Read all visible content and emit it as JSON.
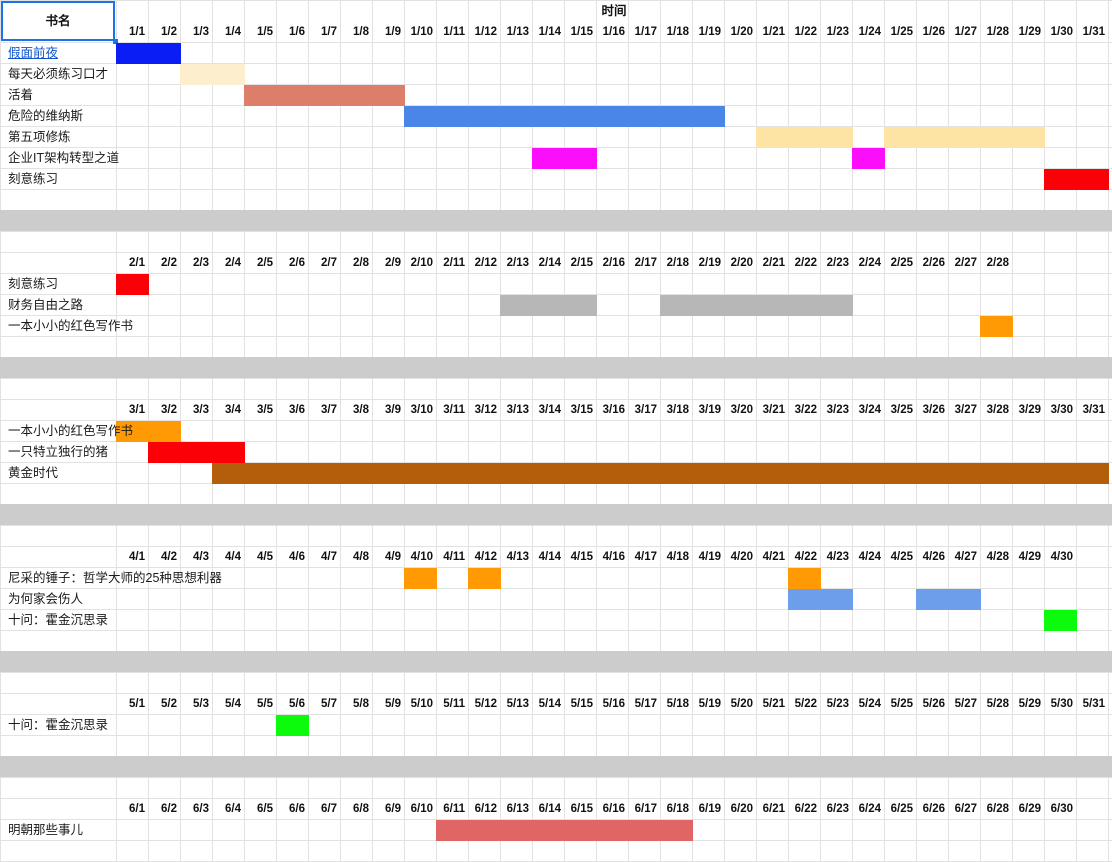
{
  "header": {
    "name_label": "书名",
    "time_label": "时间"
  },
  "colors": {
    "blue": "#0b1df5",
    "cream": "#fdefcd",
    "salmon": "#dd7e6b",
    "cornflower": "#4a86e8",
    "sand": "#fee4a4",
    "magenta": "#fb0ffb",
    "red": "#fb0007",
    "gray": "#b7b7b7",
    "orange": "#ff9a05",
    "brown": "#b25e0b",
    "lightblue": "#6d9eeb",
    "green": "#0cfb0c",
    "rose": "#e06666",
    "separator": "#cccccc"
  },
  "months": [
    {
      "month": 1,
      "days": [
        "1/1",
        "1/2",
        "1/3",
        "1/4",
        "1/5",
        "1/6",
        "1/7",
        "1/8",
        "1/9",
        "1/10",
        "1/11",
        "1/12",
        "1/13",
        "1/14",
        "1/15",
        "1/16",
        "1/17",
        "1/18",
        "1/19",
        "1/20",
        "1/21",
        "1/22",
        "1/23",
        "1/24",
        "1/25",
        "1/26",
        "1/27",
        "1/28",
        "1/29",
        "1/30",
        "1/31"
      ],
      "books": [
        {
          "title": "假面前夜",
          "link": true,
          "bars": [
            {
              "start": 1,
              "end": 2,
              "color": "blue"
            }
          ]
        },
        {
          "title": "每天必须练习口才",
          "bars": [
            {
              "start": 3,
              "end": 4,
              "color": "cream"
            }
          ]
        },
        {
          "title": "活着",
          "bars": [
            {
              "start": 5,
              "end": 9,
              "color": "salmon"
            }
          ]
        },
        {
          "title": "危险的维纳斯",
          "bars": [
            {
              "start": 10,
              "end": 19,
              "color": "cornflower"
            }
          ]
        },
        {
          "title": "第五项修炼",
          "bars": [
            {
              "start": 21,
              "end": 23,
              "color": "sand"
            },
            {
              "start": 25,
              "end": 29,
              "color": "sand"
            }
          ]
        },
        {
          "title": "企业IT架构转型之道",
          "bars": [
            {
              "start": 14,
              "end": 15,
              "color": "magenta"
            },
            {
              "start": 24,
              "end": 24,
              "color": "magenta"
            }
          ]
        },
        {
          "title": "刻意练习",
          "bars": [
            {
              "start": 30,
              "end": 31,
              "color": "red"
            }
          ]
        }
      ]
    },
    {
      "month": 2,
      "days": [
        "2/1",
        "2/2",
        "2/3",
        "2/4",
        "2/5",
        "2/6",
        "2/7",
        "2/8",
        "2/9",
        "2/10",
        "2/11",
        "2/12",
        "2/13",
        "2/14",
        "2/15",
        "2/16",
        "2/17",
        "2/18",
        "2/19",
        "2/20",
        "2/21",
        "2/22",
        "2/23",
        "2/24",
        "2/25",
        "2/26",
        "2/27",
        "2/28"
      ],
      "books": [
        {
          "title": "刻意练习",
          "bars": [
            {
              "start": 1,
              "end": 1,
              "color": "red"
            }
          ]
        },
        {
          "title": "财务自由之路",
          "bars": [
            {
              "start": 13,
              "end": 15,
              "color": "gray"
            },
            {
              "start": 18,
              "end": 23,
              "color": "gray"
            }
          ]
        },
        {
          "title": "一本小小的红色写作书",
          "bars": [
            {
              "start": 28,
              "end": 28,
              "color": "orange"
            }
          ]
        }
      ]
    },
    {
      "month": 3,
      "days": [
        "3/1",
        "3/2",
        "3/3",
        "3/4",
        "3/5",
        "3/6",
        "3/7",
        "3/8",
        "3/9",
        "3/10",
        "3/11",
        "3/12",
        "3/13",
        "3/14",
        "3/15",
        "3/16",
        "3/17",
        "3/18",
        "3/19",
        "3/20",
        "3/21",
        "3/22",
        "3/23",
        "3/24",
        "3/25",
        "3/26",
        "3/27",
        "3/28",
        "3/29",
        "3/30",
        "3/31"
      ],
      "books": [
        {
          "title": "一本小小的红色写作书",
          "bars": [
            {
              "start": 1,
              "end": 2,
              "color": "orange"
            }
          ]
        },
        {
          "title": "一只特立独行的猪",
          "bars": [
            {
              "start": 2,
              "end": 4,
              "color": "red"
            }
          ]
        },
        {
          "title": "黄金时代",
          "bars": [
            {
              "start": 4,
              "end": 31,
              "color": "brown"
            }
          ]
        }
      ]
    },
    {
      "month": 4,
      "days": [
        "4/1",
        "4/2",
        "4/3",
        "4/4",
        "4/5",
        "4/6",
        "4/7",
        "4/8",
        "4/9",
        "4/10",
        "4/11",
        "4/12",
        "4/13",
        "4/14",
        "4/15",
        "4/16",
        "4/17",
        "4/18",
        "4/19",
        "4/20",
        "4/21",
        "4/22",
        "4/23",
        "4/24",
        "4/25",
        "4/26",
        "4/27",
        "4/28",
        "4/29",
        "4/30"
      ],
      "books": [
        {
          "title": "尼采的锤子：哲学大师的25种思想利器",
          "bars": [
            {
              "start": 10,
              "end": 10,
              "color": "orange"
            },
            {
              "start": 12,
              "end": 12,
              "color": "orange"
            },
            {
              "start": 22,
              "end": 22,
              "color": "orange"
            }
          ]
        },
        {
          "title": "为何家会伤人",
          "bars": [
            {
              "start": 22,
              "end": 23,
              "color": "lightblue"
            },
            {
              "start": 26,
              "end": 27,
              "color": "lightblue"
            }
          ]
        },
        {
          "title": "十问：霍金沉思录",
          "bars": [
            {
              "start": 30,
              "end": 30,
              "color": "green"
            }
          ]
        }
      ]
    },
    {
      "month": 5,
      "days": [
        "5/1",
        "5/2",
        "5/3",
        "5/4",
        "5/5",
        "5/6",
        "5/7",
        "5/8",
        "5/9",
        "5/10",
        "5/11",
        "5/12",
        "5/13",
        "5/14",
        "5/15",
        "5/16",
        "5/17",
        "5/18",
        "5/19",
        "5/20",
        "5/21",
        "5/22",
        "5/23",
        "5/24",
        "5/25",
        "5/26",
        "5/27",
        "5/28",
        "5/29",
        "5/30",
        "5/31"
      ],
      "books": [
        {
          "title": "十问：霍金沉思录",
          "bars": [
            {
              "start": 6,
              "end": 6,
              "color": "green"
            }
          ]
        }
      ]
    },
    {
      "month": 6,
      "days": [
        "6/1",
        "6/2",
        "6/3",
        "6/4",
        "6/5",
        "6/6",
        "6/7",
        "6/8",
        "6/9",
        "6/10",
        "6/11",
        "6/12",
        "6/13",
        "6/14",
        "6/15",
        "6/16",
        "6/17",
        "6/18",
        "6/19",
        "6/20",
        "6/21",
        "6/22",
        "6/23",
        "6/24",
        "6/25",
        "6/26",
        "6/27",
        "6/28",
        "6/29",
        "6/30"
      ],
      "books": [
        {
          "title": "明朝那些事儿",
          "bars": [
            {
              "start": 11,
              "end": 18,
              "color": "rose"
            }
          ]
        }
      ]
    }
  ]
}
